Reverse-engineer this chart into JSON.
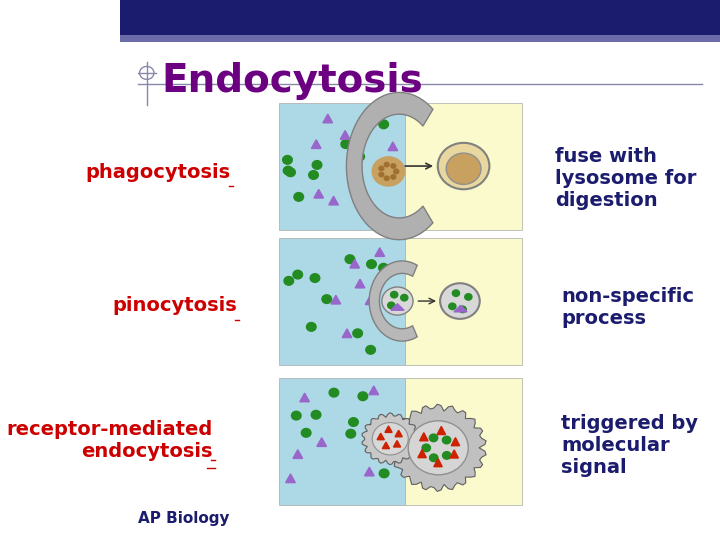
{
  "title": "Endocytosis",
  "title_color": "#6B0080",
  "title_fontsize": 28,
  "header_bar_color": "#1C1C6E",
  "header_accent_color": "#6B6BAA",
  "bg_color": "#FFFFFF",
  "labels": [
    "phagocytosis",
    "pinocytosis",
    "receptor-mediated\nendocytosis"
  ],
  "label_color": "#CC0000",
  "label_fontsize": 14,
  "descriptions": [
    "fuse with\nlysosome for\ndigestion",
    "non-specific\nprocess",
    "triggered by\nmolecular\nsignal"
  ],
  "desc_color": "#1C1C6E",
  "desc_fontsize": 14,
  "ap_biology_text": "AP Biology",
  "ap_biology_color": "#1C1C6E",
  "ap_biology_fontsize": 11,
  "cell_bg_color": "#ADD8E6",
  "extracell_bg_color": "#FAFACC",
  "dot_color_green": "#228B22",
  "dot_color_purple": "#9966CC",
  "separator_line_color": "#8888AA"
}
